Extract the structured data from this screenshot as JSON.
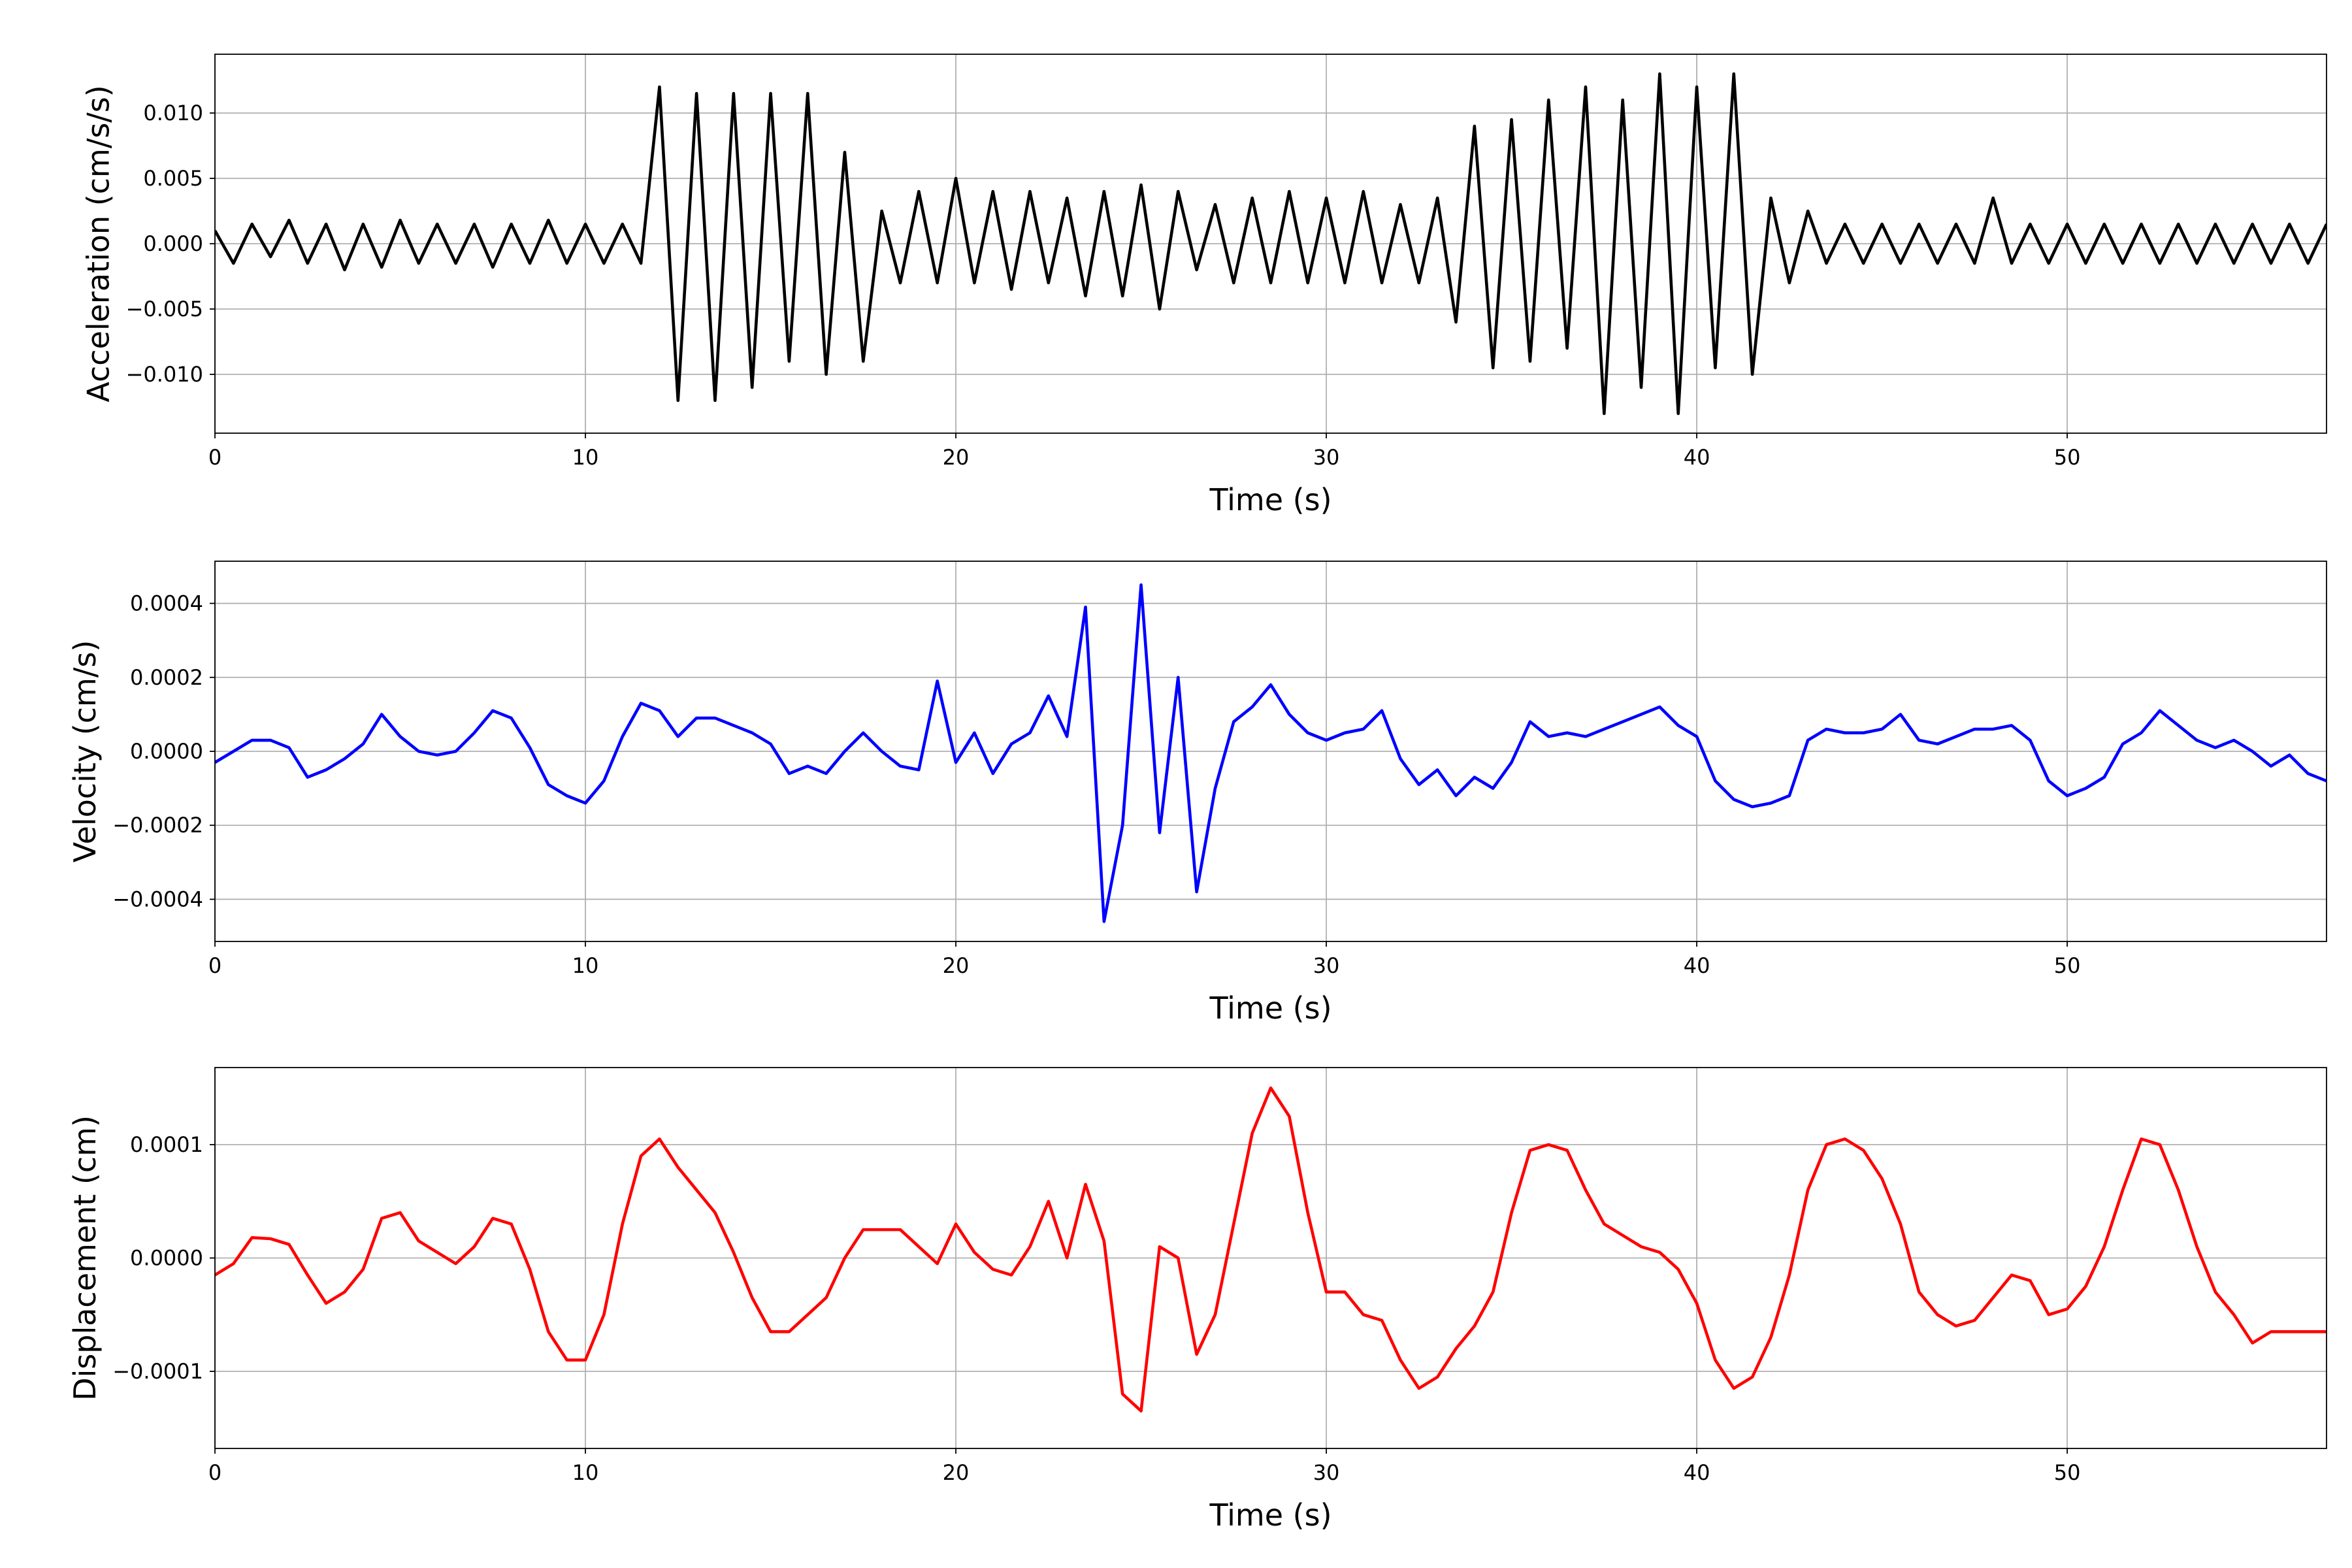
{
  "chart_data": [
    {
      "type": "line",
      "ylabel": "Acceleration (cm/s/s)",
      "xlabel": "Time (s)",
      "color": "#000000",
      "grid": true,
      "xlim": [
        0,
        57
      ],
      "xticks": [
        0,
        10,
        20,
        30,
        40,
        50
      ],
      "ylim": [
        -0.0145,
        0.0145
      ],
      "yticks": [
        {
          "value": -0.01,
          "label": "−0.010"
        },
        {
          "value": -0.005,
          "label": "−0.005"
        },
        {
          "value": 0,
          "label": "0.000"
        },
        {
          "value": 0.005,
          "label": "0.005"
        },
        {
          "value": 0.01,
          "label": "0.010"
        }
      ],
      "x": [
        0,
        0.5,
        1,
        1.5,
        2,
        2.5,
        3,
        3.5,
        4,
        4.5,
        5,
        5.5,
        6,
        6.5,
        7,
        7.5,
        8,
        8.5,
        9,
        9.5,
        10,
        10.5,
        11,
        11.5,
        12,
        12.5,
        13,
        13.5,
        14,
        14.5,
        15,
        15.5,
        16,
        16.5,
        17,
        17.5,
        18,
        18.5,
        19,
        19.5,
        20,
        20.5,
        21,
        21.5,
        22,
        22.5,
        23,
        23.5,
        24,
        24.5,
        25,
        25.5,
        26,
        26.5,
        27,
        27.5,
        28,
        28.5,
        29,
        29.5,
        30,
        30.5,
        31,
        31.5,
        32,
        32.5,
        33,
        33.5,
        34,
        34.5,
        35,
        35.5,
        36,
        36.5,
        37,
        37.5,
        38,
        38.5,
        39,
        39.5,
        40,
        40.5,
        41,
        41.5,
        42,
        42.5,
        43,
        43.5,
        44,
        44.5,
        45,
        45.5,
        46,
        46.5,
        47,
        47.5,
        48,
        48.5,
        49,
        49.5,
        50,
        50.5,
        51,
        51.5,
        52,
        52.5,
        53,
        53.5,
        54,
        54.5,
        55,
        55.5,
        56,
        56.5,
        57
      ],
      "values": [
        0.001,
        -0.0015,
        0.0015,
        -0.001,
        0.0018,
        -0.0015,
        0.0015,
        -0.002,
        0.0015,
        -0.0018,
        0.0018,
        -0.0015,
        0.0015,
        -0.0015,
        0.0015,
        -0.0018,
        0.0015,
        -0.0015,
        0.0018,
        -0.0015,
        0.0015,
        -0.0015,
        0.0015,
        -0.0015,
        0.012,
        -0.012,
        0.0115,
        -0.012,
        0.0115,
        -0.011,
        0.0115,
        -0.009,
        0.0115,
        -0.01,
        0.007,
        -0.009,
        0.0025,
        -0.003,
        0.004,
        -0.003,
        0.005,
        -0.003,
        0.004,
        -0.0035,
        0.004,
        -0.003,
        0.0035,
        -0.004,
        0.004,
        -0.004,
        0.0045,
        -0.005,
        0.004,
        -0.002,
        0.003,
        -0.003,
        0.0035,
        -0.003,
        0.004,
        -0.003,
        0.0035,
        -0.003,
        0.004,
        -0.003,
        0.003,
        -0.003,
        0.0035,
        -0.006,
        0.009,
        -0.0095,
        0.0095,
        -0.009,
        0.011,
        -0.008,
        0.012,
        -0.013,
        0.011,
        -0.011,
        0.013,
        -0.013,
        0.012,
        -0.0095,
        0.013,
        -0.01,
        0.0035,
        -0.003,
        0.0025,
        -0.0015,
        0.0015,
        -0.0015,
        0.0015,
        -0.0015,
        0.0015,
        -0.0015,
        0.0015,
        -0.0015,
        0.0035,
        -0.0015,
        0.0015,
        -0.0015,
        0.0015,
        -0.0015,
        0.0015,
        -0.0015,
        0.0015,
        -0.0015,
        0.0015,
        -0.0015,
        0.0015,
        -0.0015,
        0.0015,
        -0.0015,
        0.0015,
        -0.0015,
        0.0015
      ]
    },
    {
      "type": "line",
      "ylabel": "Velocity (cm/s)",
      "xlabel": "Time (s)",
      "color": "#0000ff",
      "grid": true,
      "xlim": [
        0,
        57
      ],
      "xticks": [
        0,
        10,
        20,
        30,
        40,
        50
      ],
      "ylim": [
        -0.000514,
        0.000514
      ],
      "yticks": [
        {
          "value": -0.0004,
          "label": "−0.0004"
        },
        {
          "value": -0.0002,
          "label": "−0.0002"
        },
        {
          "value": 0,
          "label": "0.0000"
        },
        {
          "value": 0.0002,
          "label": "0.0002"
        },
        {
          "value": 0.0004,
          "label": "0.0004"
        }
      ],
      "x": [
        0,
        0.5,
        1,
        1.5,
        2,
        2.5,
        3,
        3.5,
        4,
        4.5,
        5,
        5.5,
        6,
        6.5,
        7,
        7.5,
        8,
        8.5,
        9,
        9.5,
        10,
        10.5,
        11,
        11.5,
        12,
        12.5,
        13,
        13.5,
        14,
        14.5,
        15,
        15.5,
        16,
        16.5,
        17,
        17.5,
        18,
        18.5,
        19,
        19.5,
        20,
        20.5,
        21,
        21.5,
        22,
        22.5,
        23,
        23.5,
        24,
        24.5,
        25,
        25.5,
        26,
        26.5,
        27,
        27.5,
        28,
        28.5,
        29,
        29.5,
        30,
        30.5,
        31,
        31.5,
        32,
        32.5,
        33,
        33.5,
        34,
        34.5,
        35,
        35.5,
        36,
        36.5,
        37,
        37.5,
        38,
        38.5,
        39,
        39.5,
        40,
        40.5,
        41,
        41.5,
        42,
        42.5,
        43,
        43.5,
        44,
        44.5,
        45,
        45.5,
        46,
        46.5,
        47,
        47.5,
        48,
        48.5,
        49,
        49.5,
        50,
        50.5,
        51,
        51.5,
        52,
        52.5,
        53,
        53.5,
        54,
        54.5,
        55,
        55.5,
        56,
        56.5,
        57
      ],
      "values": [
        -3e-05,
        0,
        3e-05,
        3e-05,
        1e-05,
        -7e-05,
        -5e-05,
        -2e-05,
        2e-05,
        0.0001,
        4e-05,
        0,
        -1e-05,
        0,
        5e-05,
        0.00011,
        9e-05,
        1e-05,
        -9e-05,
        -0.00012,
        -0.00014,
        -8e-05,
        4e-05,
        0.00013,
        0.00011,
        4e-05,
        9e-05,
        9e-05,
        7e-05,
        5e-05,
        2e-05,
        -6e-05,
        -4e-05,
        -6e-05,
        0,
        5e-05,
        0,
        -4e-05,
        -5e-05,
        0.00019,
        -3e-05,
        5e-05,
        -6e-05,
        2e-05,
        5e-05,
        0.00015,
        4e-05,
        0.00039,
        -0.00046,
        -0.0002,
        0.00045,
        -0.00022,
        0.0002,
        -0.00038,
        -0.0001,
        8e-05,
        0.00012,
        0.00018,
        0.0001,
        5e-05,
        3e-05,
        5e-05,
        6e-05,
        0.00011,
        -2e-05,
        -9e-05,
        -5e-05,
        -0.00012,
        -7e-05,
        -0.0001,
        -3e-05,
        8e-05,
        4e-05,
        5e-05,
        4e-05,
        6e-05,
        8e-05,
        0.0001,
        0.00012,
        7e-05,
        4e-05,
        -8e-05,
        -0.00013,
        -0.00015,
        -0.00014,
        -0.00012,
        3e-05,
        6e-05,
        5e-05,
        5e-05,
        6e-05,
        0.0001,
        3e-05,
        2e-05,
        4e-05,
        6e-05,
        6e-05,
        7e-05,
        3e-05,
        -8e-05,
        -0.00012,
        -0.0001,
        -7e-05,
        2e-05,
        5e-05,
        0.00011,
        7e-05,
        3e-05,
        1e-05,
        3e-05,
        0,
        -4e-05,
        -1e-05,
        -6e-05,
        -8e-05
      ]
    },
    {
      "type": "line",
      "ylabel": "Displacement (cm)",
      "xlabel": "Time (s)",
      "color": "#ff0000",
      "grid": true,
      "xlim": [
        0,
        57
      ],
      "xticks": [
        0,
        10,
        20,
        30,
        40,
        50
      ],
      "ylim": [
        -0.000168,
        0.000168
      ],
      "yticks": [
        {
          "value": -0.0001,
          "label": "−0.0001"
        },
        {
          "value": 0,
          "label": "0.0000"
        },
        {
          "value": 0.0001,
          "label": "0.0001"
        }
      ],
      "x": [
        0,
        0.5,
        1,
        1.5,
        2,
        2.5,
        3,
        3.5,
        4,
        4.5,
        5,
        5.5,
        6,
        6.5,
        7,
        7.5,
        8,
        8.5,
        9,
        9.5,
        10,
        10.5,
        11,
        11.5,
        12,
        12.5,
        13,
        13.5,
        14,
        14.5,
        15,
        15.5,
        16,
        16.5,
        17,
        17.5,
        18,
        18.5,
        19,
        19.5,
        20,
        20.5,
        21,
        21.5,
        22,
        22.5,
        23,
        23.5,
        24,
        24.5,
        25,
        25.5,
        26,
        26.5,
        27,
        27.5,
        28,
        28.5,
        29,
        29.5,
        30,
        30.5,
        31,
        31.5,
        32,
        32.5,
        33,
        33.5,
        34,
        34.5,
        35,
        35.5,
        36,
        36.5,
        37,
        37.5,
        38,
        38.5,
        39,
        39.5,
        40,
        40.5,
        41,
        41.5,
        42,
        42.5,
        43,
        43.5,
        44,
        44.5,
        45,
        45.5,
        46,
        46.5,
        47,
        47.5,
        48,
        48.5,
        49,
        49.5,
        50,
        50.5,
        51,
        51.5,
        52,
        52.5,
        53,
        53.5,
        54,
        54.5,
        55,
        55.5,
        56,
        56.5,
        57
      ],
      "values": [
        -1.5e-05,
        -5e-06,
        1.8e-05,
        1.7e-05,
        1.2e-05,
        -1.5e-05,
        -4e-05,
        -3e-05,
        -1e-05,
        3.5e-05,
        4e-05,
        1.5e-05,
        5e-06,
        -5e-06,
        1e-05,
        3.5e-05,
        3e-05,
        -1e-05,
        -6.5e-05,
        -9e-05,
        -9e-05,
        -5e-05,
        3e-05,
        9e-05,
        0.000105,
        8e-05,
        6e-05,
        4e-05,
        5e-06,
        -3.5e-05,
        -6.5e-05,
        -6.5e-05,
        -5e-05,
        -3.5e-05,
        0,
        2.5e-05,
        2.5e-05,
        2.5e-05,
        1e-05,
        -5e-06,
        3e-05,
        5e-06,
        -1e-05,
        -1.5e-05,
        1e-05,
        5e-05,
        0,
        6.5e-05,
        1.5e-05,
        -0.00012,
        -0.000135,
        1e-05,
        0,
        -8.5e-05,
        -5e-05,
        3e-05,
        0.00011,
        0.00015,
        0.000125,
        4e-05,
        -3e-05,
        -3e-05,
        -5e-05,
        -5.5e-05,
        -9e-05,
        -0.000115,
        -0.000105,
        -8e-05,
        -6e-05,
        -3e-05,
        4e-05,
        9.5e-05,
        0.0001,
        9.5e-05,
        6e-05,
        3e-05,
        2e-05,
        1e-05,
        5e-06,
        -1e-05,
        -4e-05,
        -9e-05,
        -0.000115,
        -0.000105,
        -7e-05,
        -1.5e-05,
        6e-05,
        0.0001,
        0.000105,
        9.5e-05,
        7e-05,
        3e-05,
        -3e-05,
        -5e-05,
        -6e-05,
        -5.5e-05,
        -3.5e-05,
        -1.5e-05,
        -2e-05,
        -5e-05,
        -4.5e-05,
        -2.5e-05,
        1e-05,
        6e-05,
        0.000105,
        0.0001,
        6e-05,
        1e-05,
        -3e-05,
        -5e-05,
        -7.5e-05,
        -6.5e-05,
        -6.5e-05,
        -6.5e-05,
        -6.5e-05
      ]
    }
  ]
}
